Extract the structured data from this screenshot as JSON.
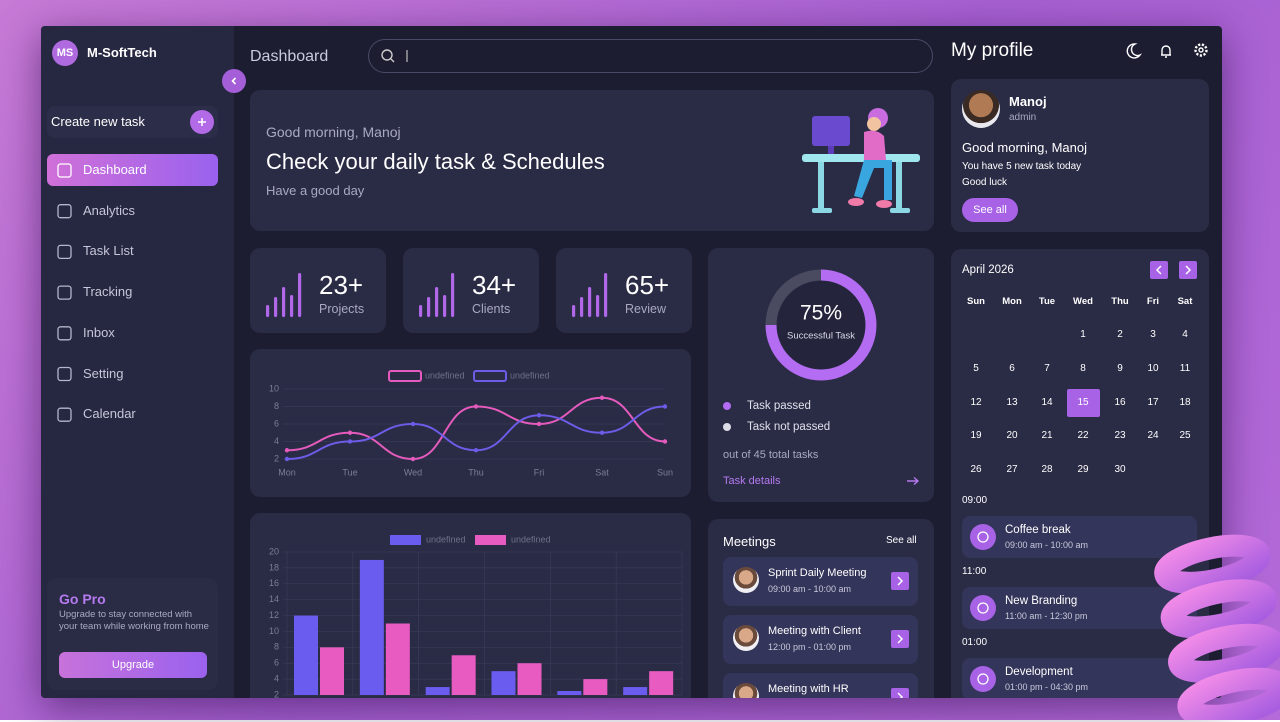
{
  "brand": {
    "initials": "MS",
    "name": "M-SoftTech"
  },
  "sidebar": {
    "create_task": "Create new task",
    "nav": [
      "Dashboard",
      "Analytics",
      "Task List",
      "Tracking",
      "Inbox",
      "Setting",
      "Calendar"
    ],
    "go_pro": {
      "title": "Go Pro",
      "text": "Upgrade to stay connected with your team while working from home",
      "button": "Upgrade"
    }
  },
  "header": {
    "title": "Dashboard"
  },
  "hero": {
    "greeting": "Good morning, Manoj",
    "headline": "Check your daily task & Schedules",
    "subtitle": "Have a good day"
  },
  "stats": [
    {
      "value": "23+",
      "label": "Projects"
    },
    {
      "value": "34+",
      "label": "Clients"
    },
    {
      "value": "65+",
      "label": "Review"
    }
  ],
  "chart_data": [
    {
      "type": "line",
      "categories": [
        "Mon",
        "Tue",
        "Wed",
        "Thu",
        "Fri",
        "Sat",
        "Sun"
      ],
      "series": [
        {
          "name": "undefined",
          "color": "#e45bbd",
          "values": [
            3,
            5,
            2,
            8,
            6,
            9,
            4
          ]
        },
        {
          "name": "undefined",
          "color": "#6c5ce7",
          "values": [
            2,
            4,
            6,
            3,
            7,
            5,
            8
          ]
        }
      ],
      "ylim": [
        2,
        10
      ],
      "yticks": [
        2,
        4,
        6,
        8,
        10
      ],
      "grid": true
    },
    {
      "type": "bar",
      "categories": [
        null,
        null,
        null,
        null,
        null,
        null
      ],
      "series": [
        {
          "name": "undefined",
          "color": "#6b5cf0",
          "values": [
            12,
            19,
            3,
            5,
            2.5,
            3
          ]
        },
        {
          "name": "undefined",
          "color": "#e85cc2",
          "values": [
            8,
            11,
            7,
            6,
            4,
            5
          ]
        }
      ],
      "ylim": [
        2,
        20
      ],
      "yticks": [
        2,
        4,
        6,
        8,
        10,
        12,
        14,
        16,
        18,
        20
      ],
      "grid": true
    },
    {
      "type": "donut",
      "categories": [
        "Task passed",
        "Task not passed"
      ],
      "values": [
        75,
        25
      ],
      "colors": [
        "#b36cf2",
        "#dcdce6"
      ],
      "center_value": {
        "value": 75,
        "label": "75%"
      },
      "center_text": "Successful Task",
      "total_text": "out of 45 total tasks",
      "link": "Task details"
    }
  ],
  "meetings": {
    "title": "Meetings",
    "see_all": "See all",
    "items": [
      {
        "title": "Sprint Daily Meeting",
        "time": "09:00 am - 10:00 am"
      },
      {
        "title": "Meeting with Client",
        "time": "12:00 pm - 01:00 pm"
      },
      {
        "title": "Meeting with HR"
      }
    ]
  },
  "profile": {
    "title": "My profile",
    "name": "Manoj",
    "role": "admin",
    "greeting": "Good morning, Manoj",
    "message": "You have 5 new task today",
    "wish": "Good luck",
    "button": "See all"
  },
  "calendar": {
    "month": "April 2026",
    "weekdays": [
      "Sun",
      "Mon",
      "Tue",
      "Wed",
      "Thu",
      "Fri",
      "Sat"
    ],
    "weeks": [
      [
        null,
        null,
        null,
        1,
        2,
        3,
        4
      ],
      [
        5,
        6,
        7,
        8,
        9,
        10,
        11
      ],
      [
        12,
        13,
        14,
        15,
        16,
        17,
        18
      ],
      [
        19,
        20,
        21,
        22,
        23,
        24,
        25
      ],
      [
        26,
        27,
        28,
        29,
        30,
        null,
        null
      ]
    ],
    "selected": 15
  },
  "schedule": [
    {
      "time": "09:00",
      "title": "Coffee break",
      "span": "09:00 am - 10:00 am"
    },
    {
      "time": "11:00",
      "title": "New Branding",
      "span": "11:00 am - 12:30 pm"
    },
    {
      "time": "01:00",
      "title": "Development",
      "span": "01:00 pm - 04:30 pm"
    }
  ]
}
